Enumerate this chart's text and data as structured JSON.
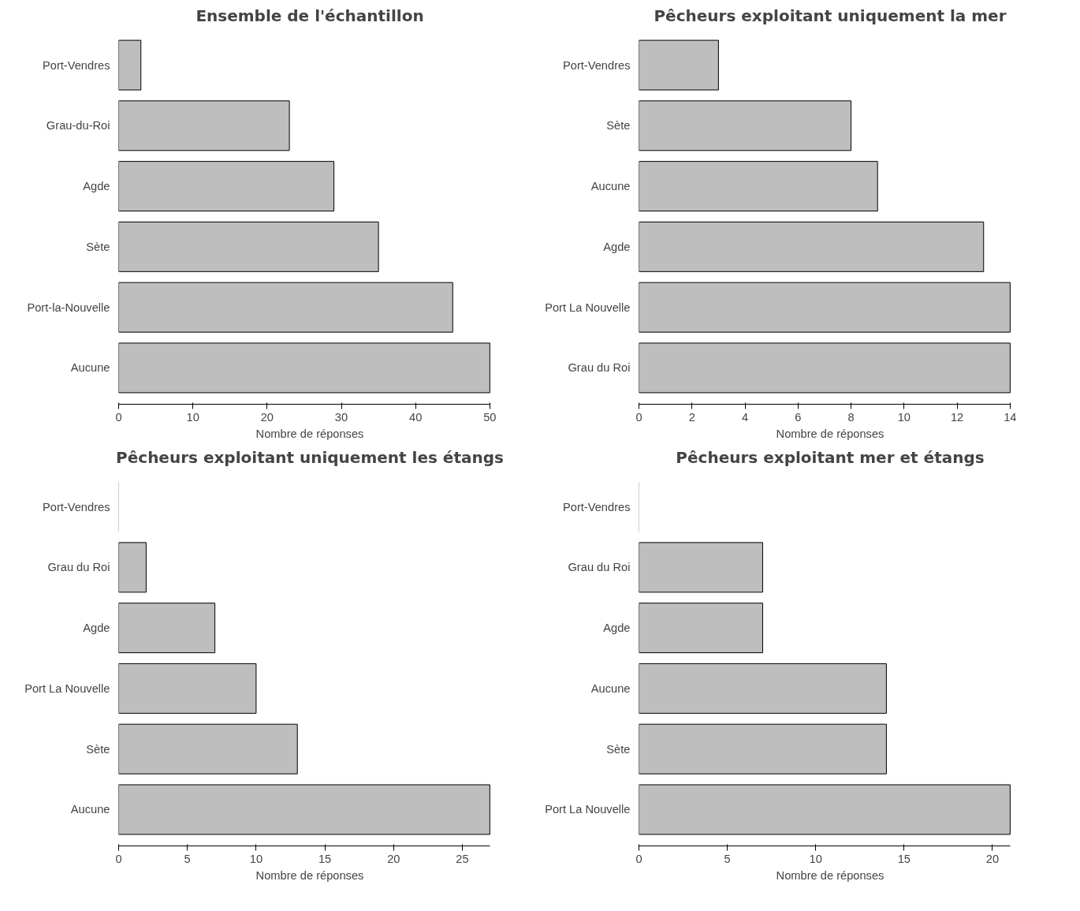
{
  "chart_data": [
    {
      "type": "bar",
      "orientation": "horizontal",
      "title": "Ensemble de l'échantillon",
      "xlabel": "Nombre de réponses",
      "categories": [
        "Port-Vendres",
        "Grau-du-Roi",
        "Agde",
        "Sète",
        "Port-la-Nouvelle",
        "Aucune"
      ],
      "values": [
        3,
        23,
        29,
        35,
        45,
        50
      ],
      "color": "#bebebe",
      "xlim": [
        0,
        50
      ],
      "xticks": [
        0,
        10,
        20,
        30,
        40,
        50
      ],
      "grid": false
    },
    {
      "type": "bar",
      "orientation": "horizontal",
      "title": "Pêcheurs exploitant uniquement la mer",
      "xlabel": "Nombre de réponses",
      "categories": [
        "Port-Vendres",
        "Sète",
        "Aucune",
        "Agde",
        "Port La Nouvelle",
        "Grau du Roi"
      ],
      "values": [
        3,
        8,
        9,
        13,
        14,
        14
      ],
      "color": "#bebebe",
      "xlim": [
        0,
        14
      ],
      "xticks": [
        0,
        2,
        4,
        6,
        8,
        10,
        12,
        14
      ],
      "grid": false
    },
    {
      "type": "bar",
      "orientation": "horizontal",
      "title": "Pêcheurs exploitant uniquement les étangs",
      "xlabel": "Nombre de réponses",
      "categories": [
        "Port-Vendres",
        "Grau du Roi",
        "Agde",
        "Port La Nouvelle",
        "Sète",
        "Aucune"
      ],
      "values": [
        0,
        2,
        7,
        10,
        13,
        27
      ],
      "color": "#bebebe",
      "xlim": [
        0,
        27
      ],
      "xticks": [
        0,
        5,
        10,
        15,
        20,
        25
      ],
      "grid": false
    },
    {
      "type": "bar",
      "orientation": "horizontal",
      "title": "Pêcheurs exploitant mer et étangs",
      "xlabel": "Nombre de réponses",
      "categories": [
        "Port-Vendres",
        "Grau du Roi",
        "Agde",
        "Aucune",
        "Sète",
        "Port La Nouvelle"
      ],
      "values": [
        0,
        7,
        7,
        14,
        14,
        21
      ],
      "color": "#bebebe",
      "xlim": [
        0,
        21
      ],
      "xticks": [
        0,
        5,
        10,
        15,
        20
      ],
      "grid": false
    }
  ]
}
